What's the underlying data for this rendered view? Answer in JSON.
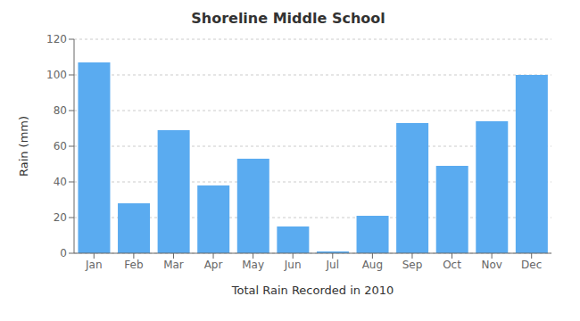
{
  "chart_data": {
    "type": "bar",
    "title": "Shoreline Middle School",
    "xlabel": "Total Rain Recorded in 2010",
    "ylabel": "Rain (mm)",
    "categories": [
      "Jan",
      "Feb",
      "Mar",
      "Apr",
      "May",
      "Jun",
      "Jul",
      "Aug",
      "Sep",
      "Oct",
      "Nov",
      "Dec"
    ],
    "values": [
      107,
      28,
      69,
      38,
      53,
      15,
      1,
      21,
      73,
      49,
      74,
      100
    ],
    "color": "#5aabf0",
    "ylim": [
      0,
      120
    ],
    "yticks": [
      0,
      20,
      40,
      60,
      80,
      100,
      120
    ],
    "grid": true
  }
}
